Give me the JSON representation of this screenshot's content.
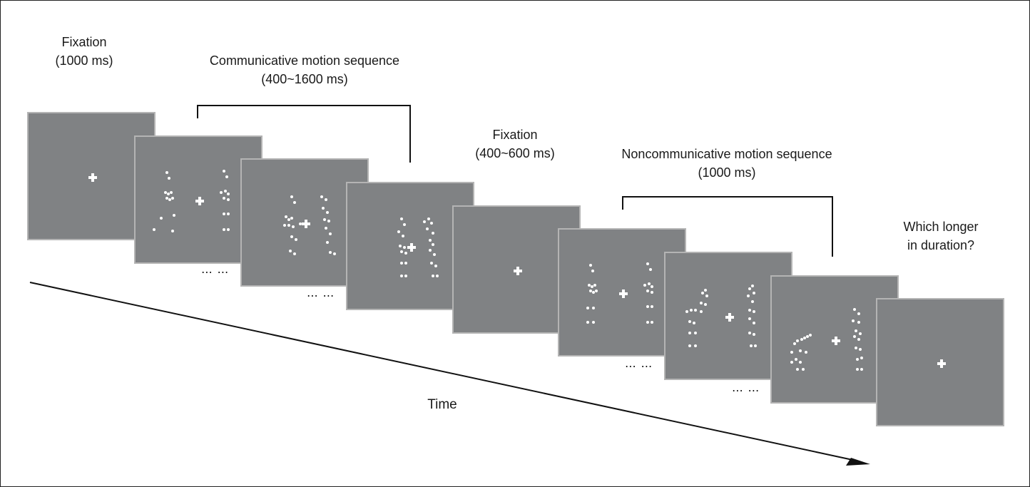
{
  "labels": {
    "fixation_1": [
      "Fixation",
      "(1000 ms)"
    ],
    "communicative": [
      "Communicative motion sequence",
      "(400~1600 ms)"
    ],
    "fixation_2": [
      "Fixation",
      "(400~600 ms)"
    ],
    "noncommunicative": [
      "Noncommunicative motion sequence",
      "(1000 ms)"
    ],
    "question": [
      "Which longer",
      "in duration?"
    ],
    "time": "Time",
    "ellipsis": "⋯ ⋯"
  },
  "screens": [
    {
      "name": "fixation-screen-1",
      "type": "fixation"
    },
    {
      "name": "communicative-frame-1",
      "type": "motion",
      "sequence": "communicative"
    },
    {
      "name": "communicative-frame-2",
      "type": "motion",
      "sequence": "communicative"
    },
    {
      "name": "communicative-frame-3",
      "type": "motion",
      "sequence": "communicative"
    },
    {
      "name": "fixation-screen-2",
      "type": "fixation"
    },
    {
      "name": "noncommunicative-frame-1",
      "type": "motion",
      "sequence": "noncommunicative"
    },
    {
      "name": "noncommunicative-frame-2",
      "type": "motion",
      "sequence": "noncommunicative"
    },
    {
      "name": "noncommunicative-frame-3",
      "type": "motion",
      "sequence": "noncommunicative"
    },
    {
      "name": "response-screen",
      "type": "fixation"
    }
  ],
  "colors": {
    "screen_fill": "#808284",
    "screen_border": "#b4b4b4",
    "stimulus": "#ffffff",
    "line": "#111111"
  }
}
